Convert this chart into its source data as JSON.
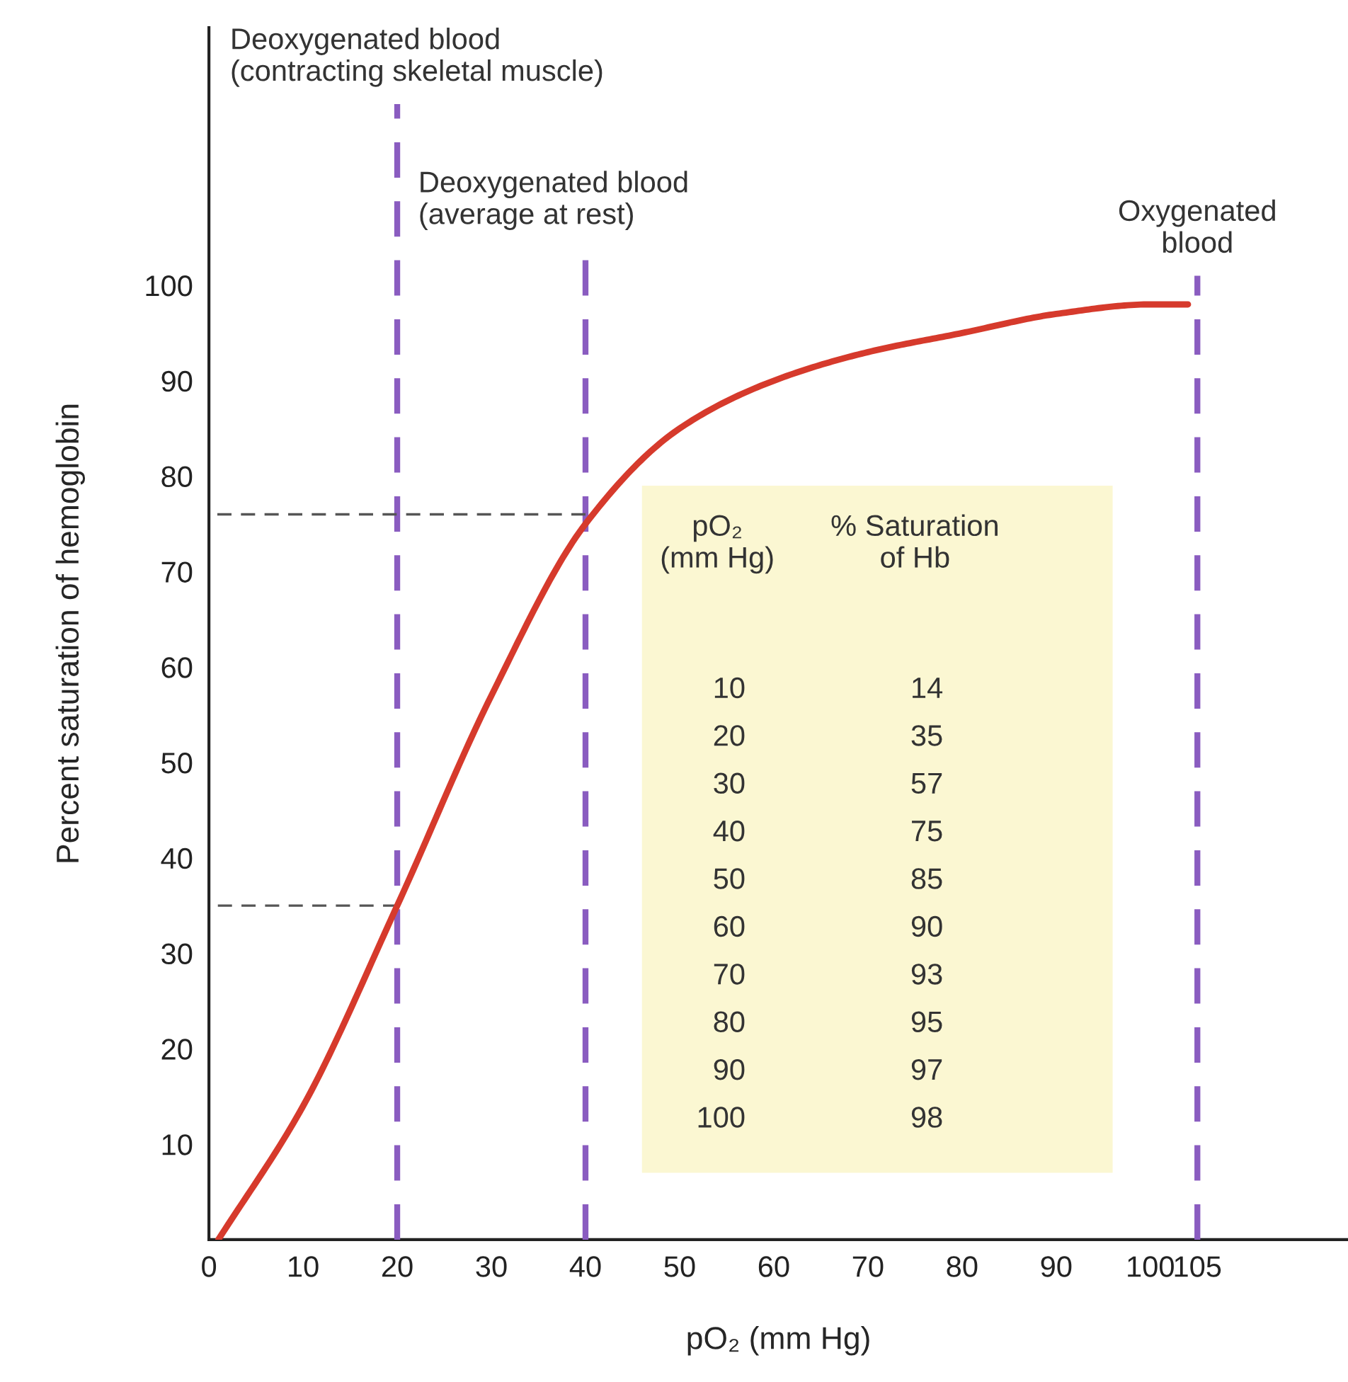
{
  "chart_data": {
    "type": "line",
    "xlabel": "pO₂ (mm Hg)",
    "ylabel": "Percent saturation of hemoglobin",
    "xlim": [
      0,
      121
    ],
    "ylim": [
      0,
      127
    ],
    "xticks": [
      0,
      10,
      20,
      30,
      40,
      50,
      60,
      70,
      80,
      90,
      100,
      105
    ],
    "yticks": [
      10,
      20,
      30,
      40,
      50,
      60,
      70,
      80,
      90,
      100
    ],
    "grid": false,
    "series": [
      {
        "color": "#d63a2c",
        "x": [
          1,
          10,
          20,
          30,
          40,
          50,
          60,
          70,
          80,
          90,
          100,
          104
        ],
        "values": [
          0,
          14,
          35,
          57,
          75,
          85,
          90,
          93,
          95,
          97,
          98,
          98
        ]
      },
      {
        "color": "#555555",
        "line_style": "dashed",
        "x": [
          0,
          40
        ],
        "values": [
          76,
          76
        ]
      },
      {
        "color": "#555555",
        "line_style": "dashed",
        "x": [
          0,
          20
        ],
        "values": [
          35,
          35
        ]
      }
    ],
    "ref_lines": [
      {
        "axis": "x",
        "value": 20,
        "label": "Deoxygenated blood\n(contracting skeletal muscle)",
        "color": "#8a5cc0",
        "line_style": "dashed"
      },
      {
        "axis": "x",
        "value": 40,
        "label": "Deoxygenated blood\n(average at rest)",
        "color": "#8a5cc0",
        "line_style": "dashed"
      },
      {
        "axis": "x",
        "value": 105,
        "label": "Oxygenated\nblood",
        "color": "#8a5cc0",
        "line_style": "dashed"
      }
    ],
    "annotations": [
      "pO₂\n(mm Hg)",
      "% Saturation\nof Hb",
      "10",
      "14",
      "20",
      "35",
      "30",
      "57",
      "40",
      "75",
      "50",
      "85",
      "60",
      "90",
      "70",
      "93",
      "80",
      "95",
      "90",
      "97",
      "100",
      "98"
    ]
  }
}
